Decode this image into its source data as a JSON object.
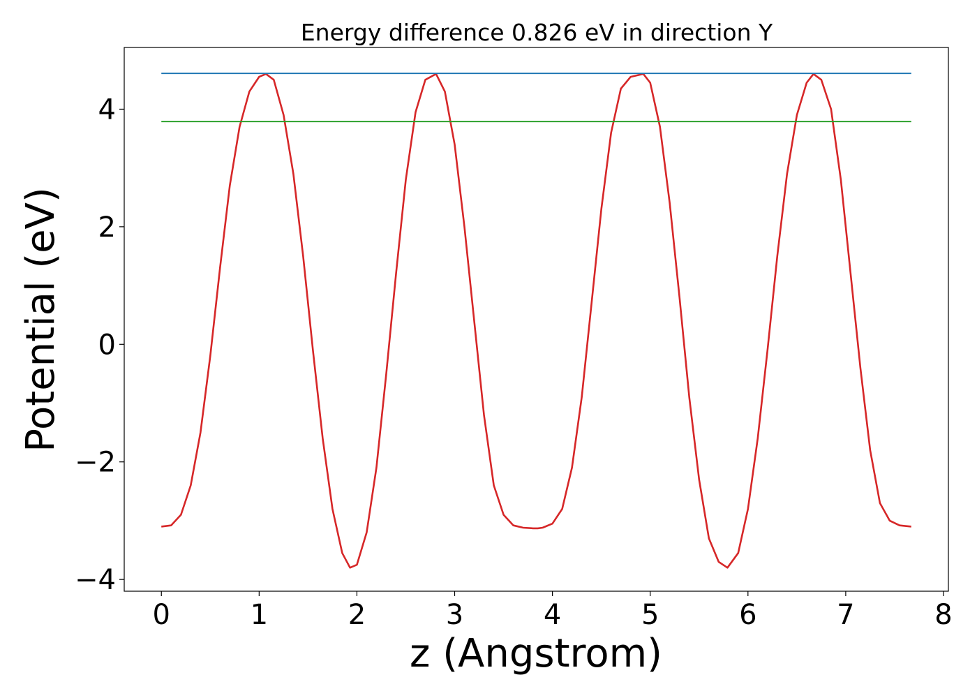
{
  "chart_data": {
    "type": "line",
    "title": "Energy difference 0.826 eV in direction Y",
    "xlabel": "z (Angstrom)",
    "ylabel": "Potential (eV)",
    "xlim": [
      -0.38,
      8.05
    ],
    "ylim": [
      -4.2,
      5.05
    ],
    "xticks": [
      0,
      1,
      2,
      3,
      4,
      5,
      6,
      7,
      8
    ],
    "xtick_labels": [
      "0",
      "1",
      "2",
      "3",
      "4",
      "5",
      "6",
      "7",
      "8"
    ],
    "yticks": [
      -4,
      -2,
      0,
      2,
      4
    ],
    "ytick_labels": [
      "−4",
      "−2",
      "0",
      "2",
      "4"
    ],
    "grid": false,
    "series": [
      {
        "color": "#d62728",
        "x": [
          0,
          0.1,
          0.2,
          0.3,
          0.4,
          0.5,
          0.6,
          0.7,
          0.8,
          0.9,
          1.0,
          1.07,
          1.15,
          1.25,
          1.35,
          1.45,
          1.55,
          1.65,
          1.75,
          1.85,
          1.93,
          2.0,
          2.1,
          2.2,
          2.3,
          2.4,
          2.5,
          2.6,
          2.7,
          2.81,
          2.9,
          3.0,
          3.1,
          3.2,
          3.3,
          3.4,
          3.5,
          3.6,
          3.7,
          3.8,
          3.85,
          3.9,
          4.0,
          4.1,
          4.2,
          4.3,
          4.4,
          4.5,
          4.6,
          4.7,
          4.8,
          4.93,
          5.0,
          5.1,
          5.2,
          5.3,
          5.4,
          5.5,
          5.6,
          5.7,
          5.79,
          5.9,
          6.0,
          6.1,
          6.2,
          6.3,
          6.4,
          6.5,
          6.6,
          6.67,
          6.75,
          6.85,
          6.95,
          7.05,
          7.15,
          7.25,
          7.35,
          7.45,
          7.55,
          7.67
        ],
        "y": [
          -3.1,
          -3.08,
          -2.9,
          -2.4,
          -1.5,
          -0.2,
          1.3,
          2.7,
          3.7,
          4.3,
          4.55,
          4.6,
          4.5,
          3.9,
          2.9,
          1.5,
          -0.1,
          -1.6,
          -2.8,
          -3.55,
          -3.8,
          -3.75,
          -3.2,
          -2.1,
          -0.5,
          1.2,
          2.8,
          3.95,
          4.5,
          4.6,
          4.3,
          3.4,
          2.0,
          0.4,
          -1.2,
          -2.4,
          -2.9,
          -3.08,
          -3.12,
          -3.13,
          -3.13,
          -3.12,
          -3.05,
          -2.8,
          -2.1,
          -0.9,
          0.7,
          2.3,
          3.6,
          4.35,
          4.55,
          4.6,
          4.45,
          3.7,
          2.4,
          0.8,
          -0.9,
          -2.3,
          -3.3,
          -3.7,
          -3.8,
          -3.55,
          -2.8,
          -1.6,
          -0.1,
          1.5,
          2.9,
          3.9,
          4.45,
          4.6,
          4.5,
          4.0,
          2.8,
          1.2,
          -0.4,
          -1.8,
          -2.7,
          -3.0,
          -3.08,
          -3.1
        ]
      },
      {
        "color": "#1f77b4",
        "x": [
          0,
          7.67
        ],
        "y": [
          4.61,
          4.61
        ]
      },
      {
        "color": "#2ca02c",
        "x": [
          0,
          7.67
        ],
        "y": [
          3.79,
          3.79
        ]
      }
    ]
  }
}
